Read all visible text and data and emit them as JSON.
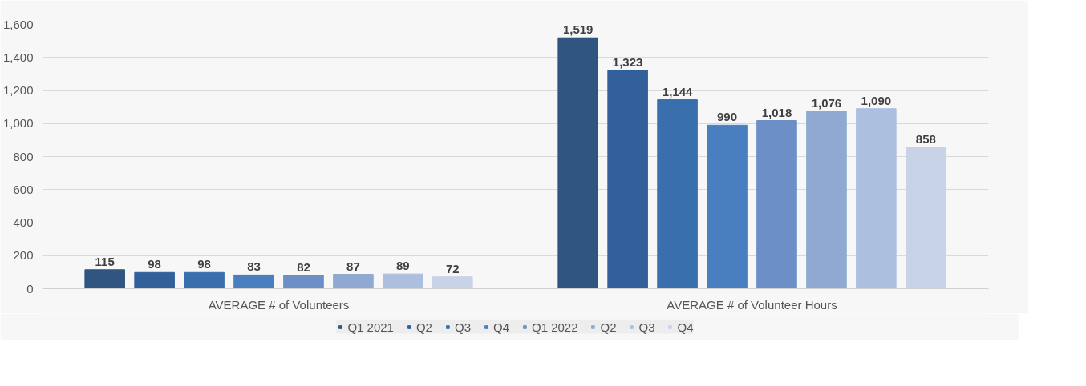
{
  "chart_data": {
    "type": "bar",
    "categories": [
      "AVERAGE # of Volunteers",
      "AVERAGE # of Volunteer Hours"
    ],
    "series": [
      {
        "name": "Q1 2021",
        "color": "#2f5580",
        "values": [
          115,
          1519
        ],
        "value_labels": [
          "115",
          "1,519"
        ]
      },
      {
        "name": "Q2",
        "color": "#31609a",
        "values": [
          98,
          1323
        ],
        "value_labels": [
          "98",
          "1,323"
        ]
      },
      {
        "name": "Q3",
        "color": "#3a6fae",
        "values": [
          98,
          1144
        ],
        "value_labels": [
          "98",
          "1,144"
        ]
      },
      {
        "name": "Q4",
        "color": "#4a7fbf",
        "values": [
          83,
          990
        ],
        "value_labels": [
          "83",
          "990"
        ]
      },
      {
        "name": "Q1 2022",
        "color": "#6b8fc6",
        "values": [
          82,
          1018
        ],
        "value_labels": [
          "82",
          "1,018"
        ]
      },
      {
        "name": "Q2",
        "color": "#8fa9d2",
        "values": [
          87,
          1076
        ],
        "value_labels": [
          "87",
          "1,076"
        ]
      },
      {
        "name": "Q3",
        "color": "#adbfdf",
        "values": [
          89,
          1090
        ],
        "value_labels": [
          "89",
          "1,090"
        ]
      },
      {
        "name": "Q4",
        "color": "#c8d3e8",
        "values": [
          72,
          858
        ],
        "value_labels": [
          "72",
          "858"
        ]
      }
    ],
    "ylim": [
      0,
      1600
    ],
    "yticks": [
      0,
      200,
      400,
      600,
      800,
      {
        "value": 1000,
        "label": "1,000"
      },
      {
        "value": 1200,
        "label": "1,200"
      },
      {
        "value": 1400,
        "label": "1,400"
      },
      {
        "value": 1600,
        "label": "1,600"
      }
    ],
    "grid": "y",
    "legend": "bottom"
  }
}
